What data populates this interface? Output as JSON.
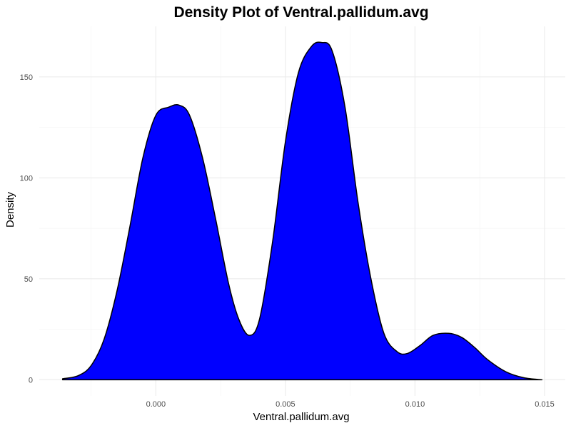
{
  "chart_data": {
    "type": "area",
    "title": "Density Plot of Ventral.pallidum.avg",
    "xlabel": "Ventral.pallidum.avg",
    "ylabel": "Density",
    "xlim": [
      -0.0045,
      0.0158
    ],
    "ylim": [
      -8,
      175
    ],
    "x_ticks": [
      0.0,
      0.005,
      0.01,
      0.015
    ],
    "x_tick_labels": [
      "0.000",
      "0.005",
      "0.010",
      "0.015"
    ],
    "x_minor_ticks": [
      -0.0025,
      0.0025,
      0.0075,
      0.0125
    ],
    "y_ticks": [
      0,
      50,
      100,
      150
    ],
    "y_tick_labels": [
      "0",
      "50",
      "100",
      "150"
    ],
    "y_minor_ticks": [
      25,
      75,
      125
    ],
    "grid": true,
    "fill_color": "#0000ff",
    "line_color": "#000000",
    "series": [
      {
        "x": [
          -0.0036,
          -0.003,
          -0.0025,
          -0.002,
          -0.0015,
          -0.001,
          -0.0005,
          0.0,
          0.0005,
          0.0009,
          0.0013,
          0.0018,
          0.0023,
          0.0028,
          0.0032,
          0.0036,
          0.004,
          0.0045,
          0.005,
          0.0055,
          0.006,
          0.0064,
          0.0068,
          0.0073,
          0.0078,
          0.0083,
          0.0088,
          0.0093,
          0.0097,
          0.0102,
          0.0107,
          0.0113,
          0.0118,
          0.0123,
          0.0128,
          0.0135,
          0.0142,
          0.0149
        ],
        "y": [
          0.5,
          2,
          7,
          20,
          44,
          76,
          110,
          131,
          135,
          136,
          131,
          110,
          80,
          48,
          30,
          22,
          30,
          68,
          118,
          152,
          165,
          167,
          163,
          135,
          88,
          50,
          23,
          14,
          13,
          17,
          22,
          23,
          21,
          16,
          10,
          4,
          1,
          0
        ]
      }
    ]
  }
}
